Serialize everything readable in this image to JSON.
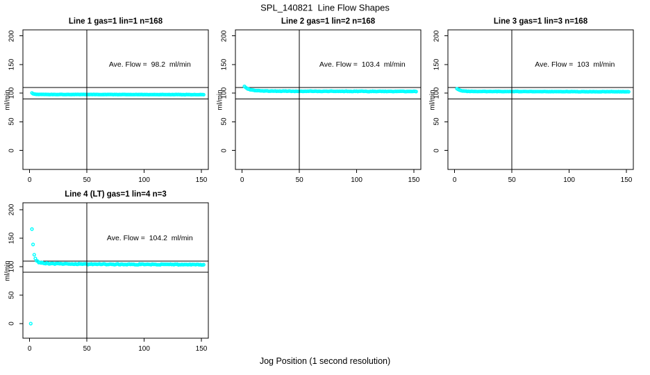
{
  "page": {
    "title": "SPL_140821  Line Flow Shapes",
    "xlabel": "Jog Position (1 second resolution)",
    "background_color": "#ffffff",
    "axis_color": "#000000"
  },
  "chart_data": [
    {
      "type": "scatter",
      "row": 0,
      "col": 0,
      "title": "Line 1 gas=1 lin=1 n=168",
      "annotation": "Ave. Flow =  98.2  ml/min",
      "ave_flow_ml_min": 98.2,
      "n": 168,
      "ylabel": "ml/min",
      "x_ticks": [
        0,
        50,
        100,
        150
      ],
      "y_ticks": [
        0,
        50,
        100,
        150,
        200
      ],
      "h_ref_lines": [
        110,
        90
      ],
      "v_ref_line": 50,
      "point_color": "#00ffff",
      "x_start": 2,
      "x_end": 152,
      "x_step": 1,
      "profile": [
        [
          2,
          100.5
        ],
        [
          3,
          99.0
        ],
        [
          5,
          98.1
        ],
        [
          8,
          97.9
        ],
        [
          30,
          97.8
        ],
        [
          80,
          97.7
        ],
        [
          152,
          97.5
        ]
      ],
      "jitter": 0.3,
      "outliers": []
    },
    {
      "type": "scatter",
      "row": 0,
      "col": 1,
      "title": "Line 2 gas=1 lin=2 n=168",
      "annotation": "Ave. Flow =  103.4  ml/min",
      "ave_flow_ml_min": 103.4,
      "n": 168,
      "ylabel": "ml/min",
      "x_ticks": [
        0,
        50,
        100,
        150
      ],
      "y_ticks": [
        0,
        50,
        100,
        150,
        200
      ],
      "h_ref_lines": [
        110,
        90
      ],
      "v_ref_line": 50,
      "point_color": "#00ffff",
      "x_start": 2,
      "x_end": 152,
      "x_step": 1,
      "profile": [
        [
          2,
          111.5
        ],
        [
          3,
          110.0
        ],
        [
          5,
          107.5
        ],
        [
          8,
          105.5
        ],
        [
          13,
          104.3
        ],
        [
          25,
          103.7
        ],
        [
          60,
          103.4
        ],
        [
          152,
          103.1
        ]
      ],
      "jitter": 0.5,
      "outliers": []
    },
    {
      "type": "scatter",
      "row": 0,
      "col": 2,
      "title": "Line 3 gas=1 lin=3 n=168",
      "annotation": "Ave. Flow =  103  ml/min",
      "ave_flow_ml_min": 103,
      "n": 168,
      "ylabel": "ml/min",
      "x_ticks": [
        0,
        50,
        100,
        150
      ],
      "y_ticks": [
        0,
        50,
        100,
        150,
        200
      ],
      "h_ref_lines": [
        110,
        90
      ],
      "v_ref_line": 50,
      "point_color": "#00ffff",
      "x_start": 2,
      "x_end": 152,
      "x_step": 1,
      "profile": [
        [
          2,
          108.0
        ],
        [
          3,
          106.5
        ],
        [
          5,
          104.8
        ],
        [
          8,
          103.7
        ],
        [
          15,
          103.1
        ],
        [
          40,
          103.0
        ],
        [
          152,
          102.6
        ]
      ],
      "jitter": 0.4,
      "outliers": []
    },
    {
      "type": "scatter",
      "row": 1,
      "col": 0,
      "title": "Line 4 (LT) gas=1 lin=4 n=3",
      "annotation": "Ave. Flow =  104.2  ml/min",
      "ave_flow_ml_min": 104.2,
      "n": 3,
      "ylabel": "ml/min",
      "x_ticks": [
        0,
        50,
        100,
        150
      ],
      "y_ticks": [
        0,
        50,
        100,
        150,
        200
      ],
      "h_ref_lines": [
        110,
        90
      ],
      "v_ref_line": 50,
      "point_color": "#00ffff",
      "x_start": 5,
      "x_end": 152,
      "x_step": 1,
      "profile": [
        [
          5,
          114.0
        ],
        [
          6,
          110.5
        ],
        [
          8,
          107.8
        ],
        [
          12,
          106.3
        ],
        [
          20,
          105.3
        ],
        [
          40,
          104.7
        ],
        [
          70,
          104.2
        ],
        [
          100,
          104.0
        ],
        [
          130,
          103.9
        ],
        [
          152,
          103.2
        ]
      ],
      "jitter": 0.9,
      "outliers": [
        [
          1,
          0
        ],
        [
          2,
          166
        ],
        [
          3,
          139
        ],
        [
          4,
          121
        ]
      ]
    }
  ]
}
